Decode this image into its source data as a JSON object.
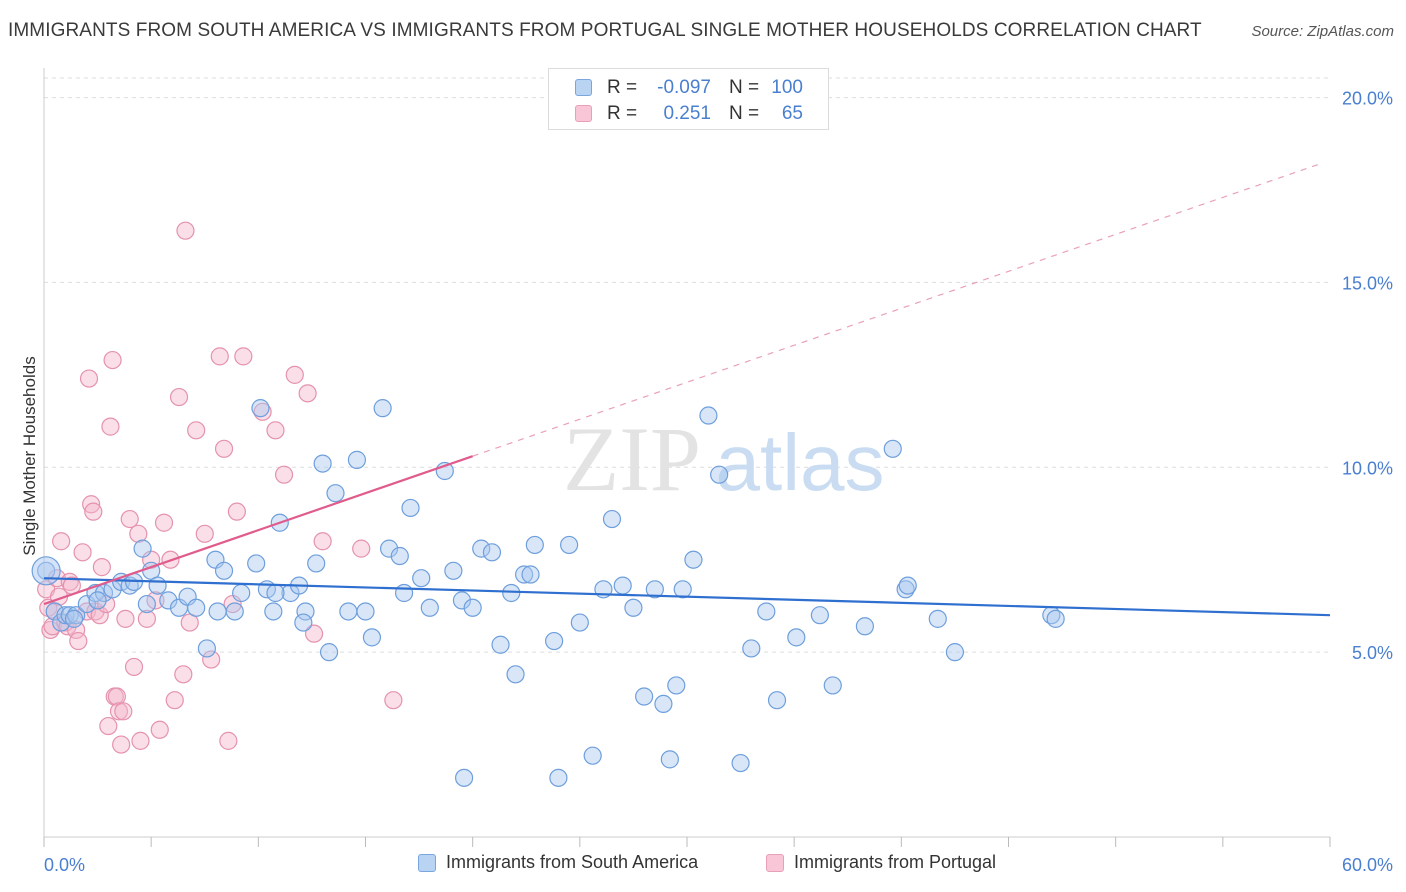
{
  "header": {
    "title": "IMMIGRANTS FROM SOUTH AMERICA VS IMMIGRANTS FROM PORTUGAL SINGLE MOTHER HOUSEHOLDS CORRELATION CHART",
    "source": "Source: ZipAtlas.com"
  },
  "legend_top": {
    "rows": [
      {
        "r_label": "R =",
        "r_value": "-0.097",
        "n_label": "N =",
        "n_value": "100"
      },
      {
        "r_label": "R =",
        "r_value": "0.251",
        "n_label": "N =",
        "n_value": "65"
      }
    ]
  },
  "legend_bottom": {
    "items": [
      {
        "label": "Immigrants from South America"
      },
      {
        "label": "Immigrants from Portugal"
      }
    ]
  },
  "watermark": {
    "zip": "ZIP",
    "atlas": "atlas"
  },
  "colors": {
    "blue_fill": "#a9c8f0",
    "blue_stroke": "#6e9fdc",
    "blue_line": "#2f6fcf",
    "pink_fill": "#f5b6cb",
    "pink_stroke": "#e592ae",
    "pink_line": "#e05c8c",
    "tick_label": "#4a7fd0",
    "grid": "#dddddd"
  },
  "chart_data": {
    "type": "scatter",
    "title": "IMMIGRANTS FROM SOUTH AMERICA VS IMMIGRANTS FROM PORTUGAL SINGLE MOTHER HOUSEHOLDS CORRELATION CHART",
    "xlabel": "",
    "ylabel": "Single Mother Households",
    "xlim": [
      0,
      60
    ],
    "ylim": [
      0,
      20.8
    ],
    "x_tick_labels": [
      "0.0%",
      "60.0%"
    ],
    "y_ticks": [
      5,
      10,
      15,
      20
    ],
    "y_tick_labels": [
      "5.0%",
      "10.0%",
      "15.0%",
      "20.0%"
    ],
    "grid": true,
    "legend_position": "top-center",
    "series": [
      {
        "name": "Immigrants from South America",
        "color": "#a9c8f0",
        "trend": {
          "x": [
            0,
            60
          ],
          "y": [
            7.0,
            6.0
          ],
          "style": "solid"
        },
        "points": [
          [
            0.1,
            7.2
          ],
          [
            0.5,
            6.1
          ],
          [
            0.8,
            5.8
          ],
          [
            1.0,
            6.0
          ],
          [
            1.2,
            6.0
          ],
          [
            1.5,
            6.0
          ],
          [
            2.0,
            6.3
          ],
          [
            2.4,
            6.6
          ],
          [
            2.8,
            6.6
          ],
          [
            3.2,
            6.7
          ],
          [
            3.6,
            6.9
          ],
          [
            4.0,
            6.8
          ],
          [
            4.2,
            6.9
          ],
          [
            4.6,
            7.8
          ],
          [
            5.0,
            7.2
          ],
          [
            5.3,
            6.8
          ],
          [
            5.8,
            6.4
          ],
          [
            6.3,
            6.2
          ],
          [
            6.7,
            6.5
          ],
          [
            7.1,
            6.2
          ],
          [
            7.6,
            5.1
          ],
          [
            8.0,
            7.5
          ],
          [
            8.4,
            7.2
          ],
          [
            8.9,
            6.1
          ],
          [
            9.2,
            6.6
          ],
          [
            9.9,
            7.4
          ],
          [
            10.1,
            11.6
          ],
          [
            10.4,
            6.7
          ],
          [
            10.7,
            6.1
          ],
          [
            11.0,
            8.5
          ],
          [
            11.5,
            6.6
          ],
          [
            11.9,
            6.8
          ],
          [
            12.2,
            6.1
          ],
          [
            12.7,
            7.4
          ],
          [
            13.0,
            10.1
          ],
          [
            13.3,
            5.0
          ],
          [
            13.6,
            9.3
          ],
          [
            14.2,
            6.1
          ],
          [
            14.6,
            10.2
          ],
          [
            15.0,
            6.1
          ],
          [
            15.3,
            5.4
          ],
          [
            15.8,
            11.6
          ],
          [
            16.1,
            7.8
          ],
          [
            16.6,
            7.6
          ],
          [
            17.1,
            8.9
          ],
          [
            17.6,
            7.0
          ],
          [
            18.0,
            6.2
          ],
          [
            18.7,
            9.9
          ],
          [
            19.1,
            7.2
          ],
          [
            19.5,
            6.4
          ],
          [
            20.0,
            6.2
          ],
          [
            20.4,
            7.8
          ],
          [
            20.9,
            7.7
          ],
          [
            21.3,
            5.2
          ],
          [
            21.8,
            6.6
          ],
          [
            22.4,
            7.1
          ],
          [
            22.9,
            7.9
          ],
          [
            23.8,
            5.3
          ],
          [
            24.5,
            7.9
          ],
          [
            25.0,
            5.8
          ],
          [
            25.6,
            2.2
          ],
          [
            26.1,
            6.7
          ],
          [
            26.5,
            8.6
          ],
          [
            27.0,
            6.8
          ],
          [
            27.5,
            6.2
          ],
          [
            28.0,
            3.8
          ],
          [
            28.5,
            6.7
          ],
          [
            28.9,
            3.6
          ],
          [
            30.3,
            7.5
          ],
          [
            29.8,
            6.7
          ],
          [
            31.0,
            11.4
          ],
          [
            31.5,
            9.8
          ],
          [
            32.5,
            2.0
          ],
          [
            33.0,
            5.1
          ],
          [
            33.7,
            6.1
          ],
          [
            34.2,
            3.7
          ],
          [
            35.1,
            5.4
          ],
          [
            36.2,
            6.0
          ],
          [
            36.8,
            4.1
          ],
          [
            38.3,
            5.7
          ],
          [
            39.6,
            10.5
          ],
          [
            40.2,
            6.7
          ],
          [
            40.3,
            6.8
          ],
          [
            41.7,
            5.9
          ],
          [
            42.5,
            5.0
          ],
          [
            47.0,
            6.0
          ],
          [
            47.2,
            5.9
          ],
          [
            19.6,
            1.6
          ],
          [
            24.0,
            1.6
          ],
          [
            29.2,
            2.1
          ],
          [
            22.0,
            4.4
          ],
          [
            22.7,
            7.1
          ],
          [
            29.5,
            4.1
          ],
          [
            8.1,
            6.1
          ],
          [
            2.5,
            6.4
          ],
          [
            4.8,
            6.3
          ],
          [
            12.1,
            5.8
          ],
          [
            1.4,
            5.9
          ],
          [
            16.8,
            6.6
          ],
          [
            10.8,
            6.6
          ]
        ]
      },
      {
        "name": "Immigrants from Portugal",
        "color": "#f5b6cb",
        "trend": {
          "x": [
            0,
            20
          ],
          "y": [
            6.3,
            10.3
          ],
          "style": "solid",
          "dashed_extension": {
            "x": [
              20,
              59.5
            ],
            "y": [
              10.3,
              18.2
            ]
          }
        },
        "points": [
          [
            0.1,
            6.7
          ],
          [
            0.2,
            6.2
          ],
          [
            0.3,
            5.6
          ],
          [
            0.4,
            5.7
          ],
          [
            0.5,
            6.1
          ],
          [
            0.6,
            7.0
          ],
          [
            0.7,
            6.5
          ],
          [
            0.8,
            8.0
          ],
          [
            1.0,
            5.8
          ],
          [
            1.1,
            5.7
          ],
          [
            1.2,
            6.9
          ],
          [
            1.3,
            6.8
          ],
          [
            1.5,
            5.6
          ],
          [
            1.6,
            5.3
          ],
          [
            1.8,
            7.7
          ],
          [
            2.0,
            6.1
          ],
          [
            2.1,
            12.4
          ],
          [
            2.2,
            9.0
          ],
          [
            2.3,
            8.8
          ],
          [
            2.4,
            6.1
          ],
          [
            2.6,
            6.0
          ],
          [
            2.7,
            7.3
          ],
          [
            2.9,
            6.3
          ],
          [
            3.0,
            3.0
          ],
          [
            3.1,
            11.1
          ],
          [
            3.2,
            12.9
          ],
          [
            3.3,
            3.8
          ],
          [
            3.4,
            3.8
          ],
          [
            3.5,
            3.4
          ],
          [
            3.6,
            2.5
          ],
          [
            3.7,
            3.4
          ],
          [
            3.8,
            5.9
          ],
          [
            4.0,
            8.6
          ],
          [
            4.2,
            4.6
          ],
          [
            4.4,
            8.2
          ],
          [
            4.5,
            2.6
          ],
          [
            4.8,
            5.9
          ],
          [
            5.0,
            7.5
          ],
          [
            5.2,
            6.4
          ],
          [
            5.4,
            2.9
          ],
          [
            5.6,
            8.5
          ],
          [
            5.9,
            7.5
          ],
          [
            6.1,
            3.7
          ],
          [
            6.3,
            11.9
          ],
          [
            6.5,
            4.4
          ],
          [
            6.8,
            5.8
          ],
          [
            7.1,
            11.0
          ],
          [
            7.5,
            8.2
          ],
          [
            7.8,
            4.8
          ],
          [
            8.2,
            13.0
          ],
          [
            8.4,
            10.5
          ],
          [
            8.6,
            2.6
          ],
          [
            9.0,
            8.8
          ],
          [
            9.3,
            13.0
          ],
          [
            10.2,
            11.5
          ],
          [
            10.8,
            11.0
          ],
          [
            11.2,
            9.8
          ],
          [
            11.7,
            12.5
          ],
          [
            12.3,
            12.0
          ],
          [
            12.6,
            5.5
          ],
          [
            13.0,
            8.0
          ],
          [
            14.8,
            7.8
          ],
          [
            16.3,
            3.7
          ],
          [
            8.8,
            6.3
          ],
          [
            6.6,
            16.4
          ]
        ]
      }
    ]
  }
}
